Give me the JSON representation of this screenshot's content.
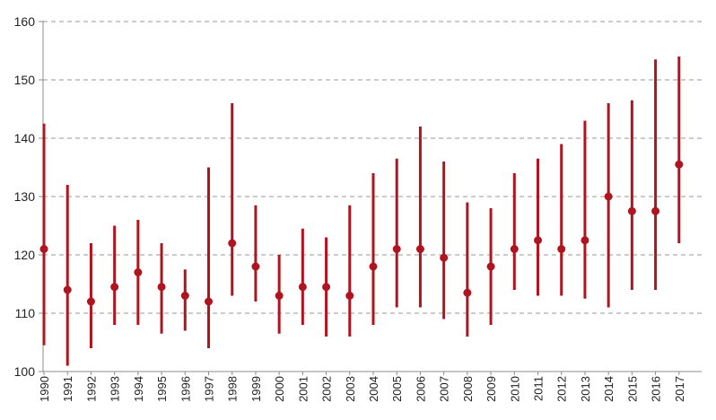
{
  "chart_data": {
    "type": "scatter",
    "subtype": "range-with-point",
    "title": "",
    "xlabel": "",
    "ylabel": "",
    "ylim": [
      100,
      160
    ],
    "y_ticks": [
      100,
      110,
      120,
      130,
      140,
      150,
      160
    ],
    "grid": "horizontal-dashed",
    "legend": "none",
    "categories": [
      "1990",
      "1991",
      "1992",
      "1993",
      "1994",
      "1995",
      "1996",
      "1997",
      "1998",
      "1999",
      "2000",
      "2001",
      "2002",
      "2003",
      "2004",
      "2005",
      "2006",
      "2007",
      "2008",
      "2009",
      "2010",
      "2011",
      "2012",
      "2013",
      "2014",
      "2015",
      "2016",
      "2017"
    ],
    "series": [
      {
        "values": [
          121,
          114,
          112,
          114.5,
          117,
          114.5,
          113,
          112,
          122,
          118,
          113,
          114.5,
          114.5,
          113,
          118,
          121,
          121,
          119.5,
          113.5,
          118,
          121,
          122.5,
          121,
          122.5,
          130,
          127.5,
          127.5,
          135.5
        ],
        "low": [
          104.5,
          101,
          104,
          108,
          108,
          106.5,
          107,
          104,
          113,
          112,
          106.5,
          108,
          106,
          106,
          108,
          111,
          111,
          109,
          106,
          108,
          114,
          113,
          113,
          112.5,
          111,
          114,
          114,
          122
        ],
        "high": [
          142.5,
          132,
          122,
          125,
          126,
          122,
          117.5,
          135,
          146,
          128.5,
          120,
          124.5,
          123,
          128.5,
          134,
          136.5,
          142,
          136,
          129,
          128,
          134,
          136.5,
          139,
          143,
          146,
          146.5,
          153.5,
          154
        ]
      }
    ],
    "colors": {
      "range_line": "#b0141f",
      "point": "#b0141f",
      "grid": "#9a9a9a",
      "axis": "#8c8c8c"
    }
  }
}
